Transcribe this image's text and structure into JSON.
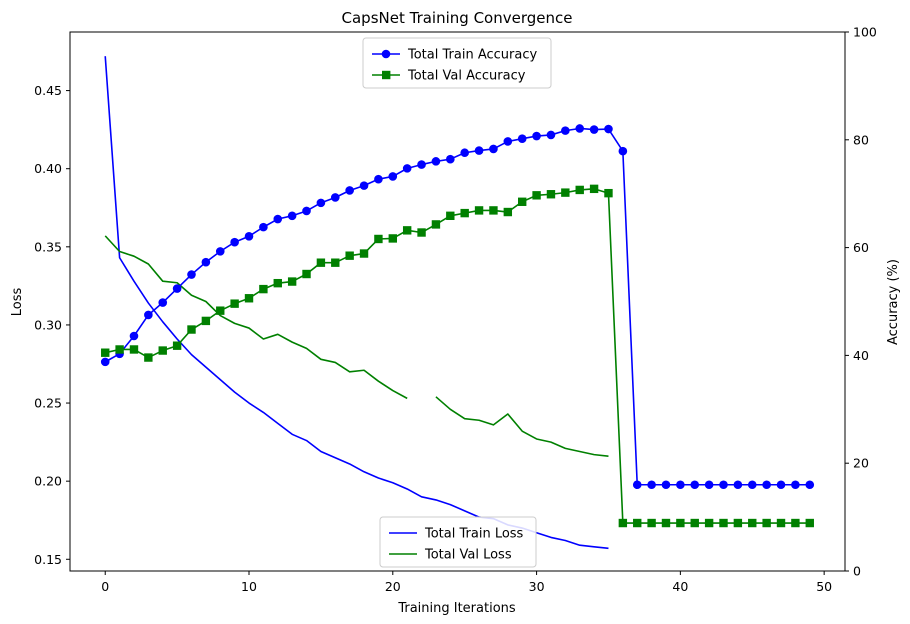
{
  "chart_data": {
    "type": "line",
    "title": "CapsNet Training Convergence",
    "xlabel": "Training Iterations",
    "ylabel_left": "Loss",
    "ylabel_right": "Accuracy (%)",
    "xlim": [
      -2.45,
      51.45
    ],
    "ylim_left": [
      0.1425,
      0.4875
    ],
    "ylim_right": [
      0,
      100
    ],
    "xticks": [
      0,
      10,
      20,
      30,
      40,
      50
    ],
    "yticks_left": [
      0.15,
      0.2,
      0.25,
      0.3,
      0.35,
      0.4,
      0.45
    ],
    "yticks_right": [
      0,
      20,
      40,
      60,
      80,
      100
    ],
    "grid": false,
    "legend_accuracy_position": "upper center",
    "legend_loss_position": "lower center",
    "accuracy_series": [
      {
        "name": "Total Train Accuracy",
        "axis": "right",
        "color": "#0000ff",
        "marker": "circle",
        "x": [
          0,
          1,
          2,
          3,
          4,
          5,
          6,
          7,
          8,
          9,
          10,
          11,
          12,
          13,
          14,
          15,
          16,
          17,
          18,
          19,
          20,
          21,
          22,
          23,
          24,
          25,
          26,
          27,
          28,
          29,
          30,
          31,
          32,
          33,
          34,
          35,
          36,
          37,
          38,
          39,
          40,
          41,
          42,
          43,
          44,
          45,
          46,
          47,
          48,
          49
        ],
        "y": [
          38.8,
          40.3,
          43.6,
          47.5,
          49.8,
          52.4,
          55.0,
          57.3,
          59.3,
          61.0,
          62.1,
          63.8,
          65.3,
          65.9,
          66.8,
          68.3,
          69.3,
          70.6,
          71.5,
          72.7,
          73.2,
          74.7,
          75.4,
          76.0,
          76.4,
          77.6,
          78.0,
          78.3,
          79.7,
          80.2,
          80.7,
          80.9,
          81.7,
          82.1,
          81.9,
          82.0,
          77.9,
          16.0,
          16.0,
          16.0,
          16.0,
          16.0,
          16.0,
          16.0,
          16.0,
          16.0,
          16.0,
          16.0,
          16.0,
          16.0
        ]
      },
      {
        "name": "Total Val Accuracy",
        "axis": "right",
        "color": "#008000",
        "marker": "square",
        "x": [
          0,
          1,
          2,
          3,
          4,
          5,
          6,
          7,
          8,
          9,
          10,
          11,
          12,
          13,
          14,
          15,
          16,
          17,
          18,
          19,
          20,
          21,
          22,
          23,
          24,
          25,
          26,
          27,
          28,
          29,
          30,
          31,
          32,
          33,
          34,
          35,
          36,
          37,
          38,
          39,
          40,
          41,
          42,
          43,
          44,
          45,
          46,
          47,
          48,
          49
        ],
        "y": [
          40.5,
          41.1,
          41.1,
          39.6,
          40.9,
          41.8,
          44.8,
          46.4,
          48.3,
          49.6,
          50.6,
          52.3,
          53.4,
          53.7,
          55.1,
          57.2,
          57.2,
          58.5,
          58.9,
          61.6,
          61.7,
          63.2,
          62.8,
          64.3,
          65.9,
          66.4,
          66.9,
          66.9,
          66.6,
          68.5,
          69.7,
          69.9,
          70.2,
          70.7,
          70.9,
          70.1,
          8.9,
          8.9,
          8.9,
          8.9,
          8.9,
          8.9,
          8.9,
          8.9,
          8.9,
          8.9,
          8.9,
          8.9,
          8.9,
          8.9
        ]
      }
    ],
    "loss_series": [
      {
        "name": "Total Train Loss",
        "axis": "left",
        "color": "#0000ff",
        "x": [
          0,
          1,
          2,
          3,
          4,
          5,
          6,
          7,
          8,
          9,
          10,
          11,
          12,
          13,
          14,
          15,
          16,
          17,
          18,
          19,
          20,
          21,
          22,
          23,
          24,
          25,
          26,
          27,
          28,
          29,
          30,
          31,
          32,
          33,
          34,
          35
        ],
        "y": [
          0.472,
          0.343,
          0.328,
          0.314,
          0.302,
          0.291,
          0.281,
          0.273,
          0.265,
          0.257,
          0.25,
          0.244,
          0.237,
          0.23,
          0.226,
          0.219,
          0.215,
          0.211,
          0.206,
          0.202,
          0.199,
          0.195,
          0.19,
          0.188,
          0.185,
          0.181,
          0.177,
          0.176,
          0.172,
          0.17,
          0.167,
          0.164,
          0.162,
          0.159,
          0.158,
          0.157
        ]
      },
      {
        "name": "Total Val Loss",
        "axis": "left",
        "color": "#008000",
        "x": [
          0,
          1,
          2,
          3,
          4,
          5,
          6,
          7,
          8,
          9,
          10,
          11,
          12,
          13,
          14,
          15,
          16,
          17,
          18,
          19,
          20,
          21,
          22,
          23,
          24,
          25,
          26,
          27,
          28,
          29,
          30,
          31,
          32,
          33,
          34,
          35
        ],
        "y": [
          0.357,
          0.347,
          0.344,
          0.339,
          0.328,
          0.327,
          0.319,
          0.315,
          0.306,
          0.301,
          0.298,
          0.291,
          0.294,
          0.289,
          0.285,
          0.278,
          0.276,
          0.27,
          0.271,
          0.264,
          0.258,
          0.253,
          null,
          0.254,
          0.246,
          0.24,
          0.239,
          0.236,
          0.243,
          0.232,
          0.227,
          0.225,
          0.221,
          0.219,
          0.217,
          0.216
        ]
      }
    ]
  }
}
